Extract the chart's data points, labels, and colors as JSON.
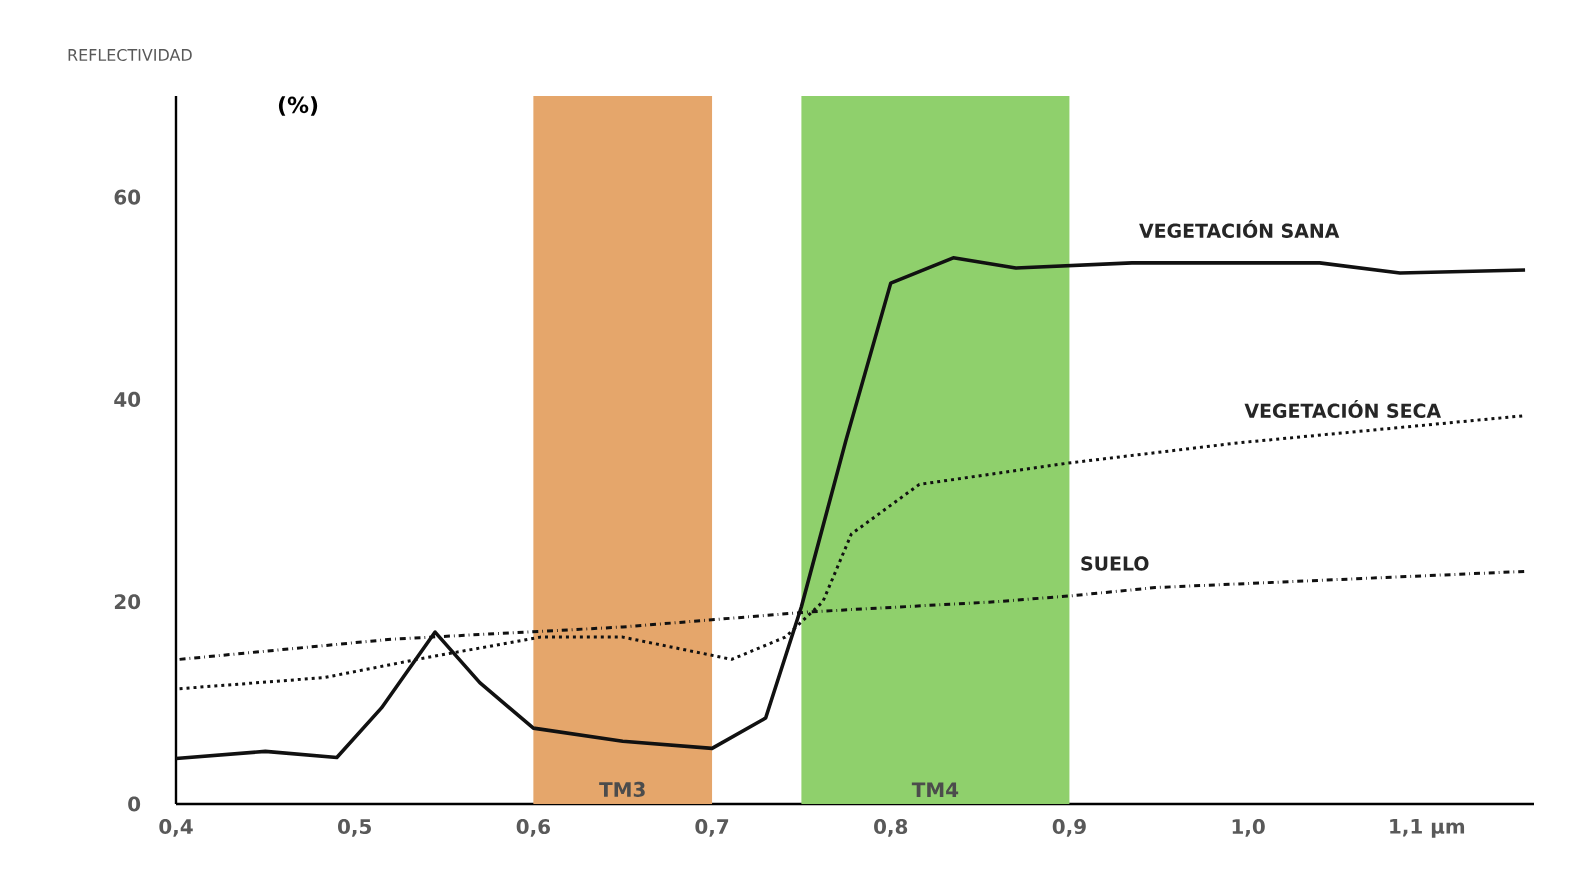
{
  "chart_data": {
    "type": "line",
    "ylabel": "REFLECTIVIDAD",
    "annotations": [
      "(%)"
    ],
    "xlim": [
      0.4,
      1.16
    ],
    "ylim": [
      0,
      70
    ],
    "xticks": [
      {
        "value": 0.4,
        "label": "0,4"
      },
      {
        "value": 0.5,
        "label": "0,5"
      },
      {
        "value": 0.6,
        "label": "0,6"
      },
      {
        "value": 0.7,
        "label": "0,7"
      },
      {
        "value": 0.8,
        "label": "0,8"
      },
      {
        "value": 0.9,
        "label": "0,9"
      },
      {
        "value": 1.0,
        "label": "1,0"
      },
      {
        "value": 1.1,
        "label": "1,1 µm"
      }
    ],
    "yticks": [
      0,
      20,
      40,
      60
    ],
    "grid": false,
    "legend": false,
    "bands": [
      {
        "axis": "x",
        "from": 0.6,
        "to": 0.7,
        "label": "TM3",
        "color": "#e5a66b"
      },
      {
        "axis": "x",
        "from": 0.75,
        "to": 0.9,
        "label": "TM4",
        "color": "#8fd06c"
      }
    ],
    "series": [
      {
        "name": "VEGETACIÓN SANA",
        "color": "#111111",
        "line_style": "solid",
        "x": [
          0.4,
          0.45,
          0.49,
          0.515,
          0.545,
          0.57,
          0.6,
          0.65,
          0.7,
          0.73,
          0.75,
          0.775,
          0.8,
          0.835,
          0.87,
          0.935,
          1.04,
          1.085,
          1.155
        ],
        "values": [
          4.5,
          5.2,
          4.6,
          9.5,
          17,
          12,
          7.5,
          6.2,
          5.5,
          8.5,
          19.5,
          36,
          51.5,
          54,
          53,
          53.5,
          53.5,
          52.5,
          52.8
        ]
      },
      {
        "name": "VEGETACIÓN SECA",
        "color": "#111111",
        "line_style": "dotted",
        "x": [
          0.402,
          0.483,
          0.541,
          0.604,
          0.65,
          0.711,
          0.741,
          0.762,
          0.778,
          0.816,
          0.899,
          0.994,
          1.155
        ],
        "values": [
          11.4,
          12.5,
          14.5,
          16.5,
          16.5,
          14.3,
          16.5,
          20,
          26.7,
          31.6,
          33.7,
          35.7,
          38.4
        ]
      },
      {
        "name": "SUELO",
        "color": "#111111",
        "line_style": "dashdotted",
        "x": [
          0.402,
          0.521,
          0.65,
          0.741,
          0.755,
          0.859,
          0.902,
          0.948,
          1.155
        ],
        "values": [
          14.3,
          16.3,
          17.5,
          18.8,
          19,
          20,
          20.6,
          21.4,
          23
        ]
      }
    ]
  }
}
